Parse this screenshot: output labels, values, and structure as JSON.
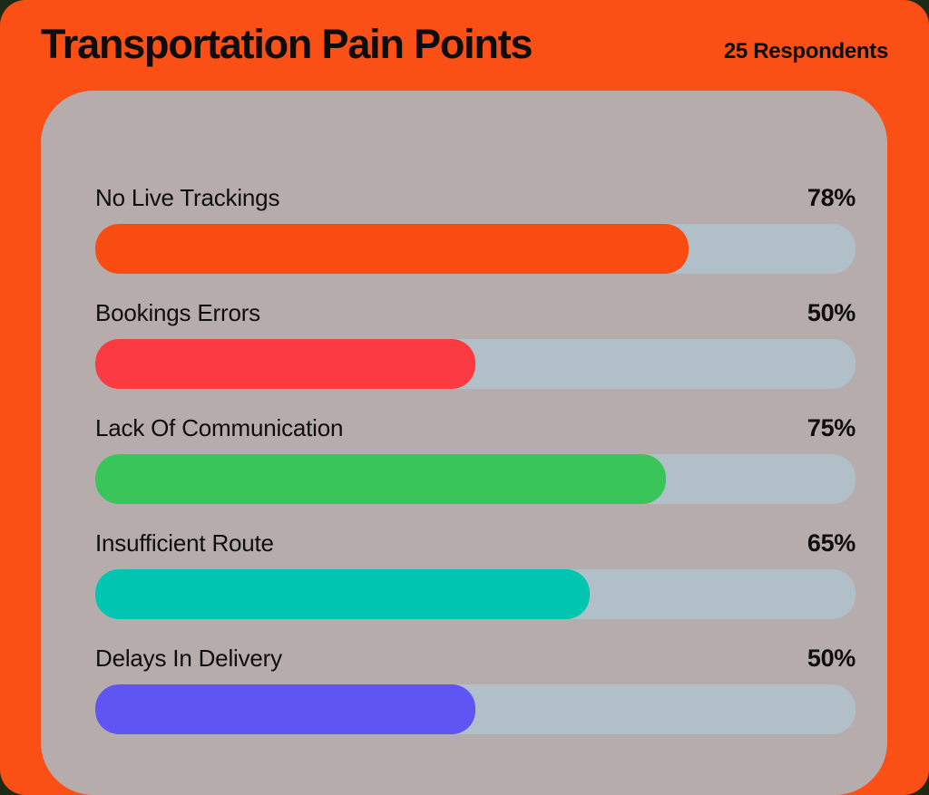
{
  "header": {
    "title": "Transportation Pain Points",
    "respondents": "25 Respondents"
  },
  "colors": {
    "backdrop": "#1D2B15",
    "page_bg": "#FA4F15",
    "panel_bg": "#B7ACAC",
    "bar_track": "#B1C0C8",
    "text": "#0D0D0D",
    "bar_orange": "#F94C11",
    "bar_red": "#FB3B41",
    "bar_green": "#3AC55B",
    "bar_teal": "#00C5B0",
    "bar_purple": "#5F55F3"
  },
  "rows": [
    {
      "label": "No Live Trackings",
      "value_label": "78%",
      "percent": 78,
      "color": "#F94C11"
    },
    {
      "label": "Bookings Errors",
      "value_label": "50%",
      "percent": 50,
      "color": "#FB3B41"
    },
    {
      "label": "Lack Of Communication",
      "value_label": "75%",
      "percent": 75,
      "color": "#3AC55B"
    },
    {
      "label": "Insufficient Route",
      "value_label": "65%",
      "percent": 65,
      "color": "#00C5B0"
    },
    {
      "label": "Delays In Delivery",
      "value_label": "50%",
      "percent": 50,
      "color": "#5F55F3"
    }
  ],
  "chart_data": {
    "type": "bar",
    "orientation": "horizontal",
    "title": "Transportation Pain Points",
    "subtitle": "25 Respondents",
    "categories": [
      "No Live Trackings",
      "Bookings Errors",
      "Lack Of Communication",
      "Insufficient Route",
      "Delays In Delivery"
    ],
    "values": [
      78,
      50,
      75,
      65,
      50
    ],
    "value_labels": [
      "78%",
      "50%",
      "75%",
      "65%",
      "50%"
    ],
    "bar_colors": [
      "#F94C11",
      "#FB3B41",
      "#3AC55B",
      "#00C5B0",
      "#5F55F3"
    ],
    "xlabel": "",
    "ylabel": "",
    "xlim": [
      0,
      100
    ],
    "grid": false,
    "legend": false,
    "value_label_position": "right-aligned above bar"
  }
}
